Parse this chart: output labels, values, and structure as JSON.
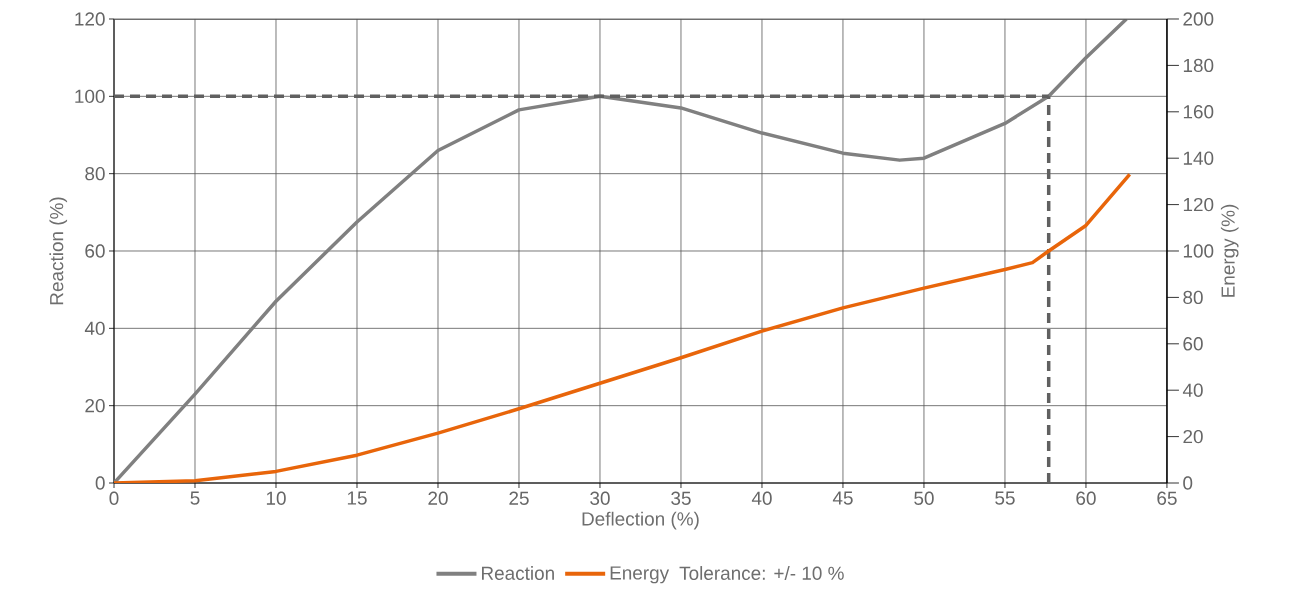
{
  "chart_data": {
    "type": "line",
    "xlabel": "Deflection (%)",
    "ylabel": "Reaction (%)",
    "y2label": "Energy (%)",
    "xlim": [
      0,
      65
    ],
    "xticks": [
      0,
      5,
      10,
      15,
      20,
      25,
      30,
      35,
      40,
      45,
      50,
      55,
      60,
      65
    ],
    "ylim": [
      0,
      120
    ],
    "yticks": [
      0,
      20,
      40,
      60,
      80,
      100,
      120
    ],
    "y2lim": [
      0,
      200
    ],
    "y2ticks": [
      0,
      20,
      40,
      60,
      80,
      100,
      120,
      140,
      160,
      180,
      200
    ],
    "grid": true,
    "legend": "bottom",
    "line_style": "solid",
    "annotations": [
      "Tolerance: +/- 10 %"
    ],
    "ref_lines": [
      {
        "axis": "y",
        "value": 100,
        "color": "#606060",
        "line_style": "dashed"
      },
      {
        "axis": "x",
        "value": 57.7,
        "color": "#606060",
        "line_style": "dashed"
      }
    ],
    "series": [
      {
        "name": "Reaction",
        "color": "#808080",
        "x": [
          0,
          5,
          10,
          15,
          20,
          25,
          30,
          35,
          40,
          45,
          48.5,
          50,
          55,
          57.7,
          60,
          62.5
        ],
        "values": [
          0,
          23,
          47,
          67.5,
          86,
          96.5,
          100,
          97,
          90.5,
          85.3,
          83.5,
          84,
          93,
          100,
          110,
          120
        ]
      },
      {
        "name": "Energy",
        "color": "#e8650a",
        "axis": "y2",
        "x": [
          0,
          5,
          10,
          15,
          20,
          25,
          30,
          35,
          40,
          45,
          50,
          55,
          56.7,
          57.7,
          60,
          62.7
        ],
        "values": [
          0,
          1,
          5,
          12,
          21.5,
          32,
          43,
          54,
          65.5,
          75.5,
          84,
          92,
          95,
          100,
          111,
          133
        ]
      }
    ]
  }
}
